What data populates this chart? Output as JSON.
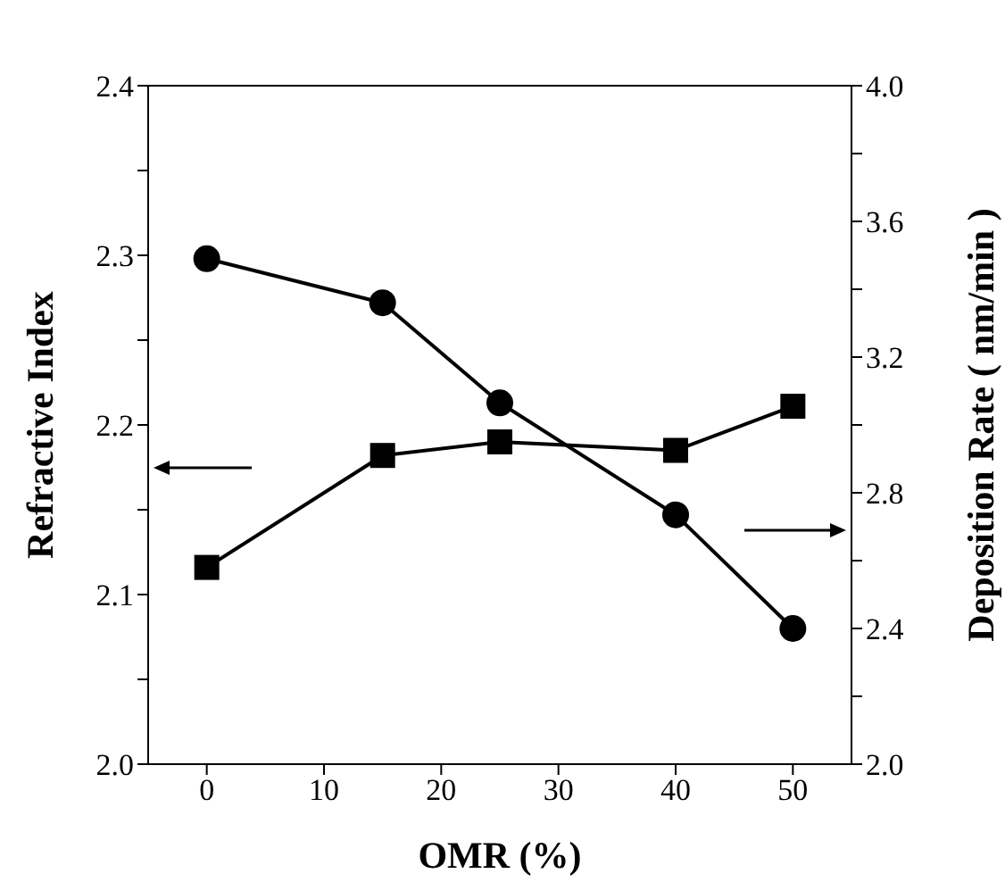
{
  "chart_data": {
    "type": "line",
    "xlabel": "OMR (%)",
    "ylabel": "Refractive Index",
    "y2label": "Deposition Rate ( nm/min )",
    "x": [
      0,
      15,
      25,
      40,
      50
    ],
    "xlim": [
      -5,
      55
    ],
    "xticks": [
      0,
      10,
      20,
      30,
      40,
      50
    ],
    "ylim": [
      2.0,
      2.4
    ],
    "yticks": [
      {
        "value": 2.0,
        "label": "2.0"
      },
      {
        "value": 2.05,
        "label": null
      },
      2.1,
      {
        "value": 2.15,
        "label": null
      },
      2.2,
      {
        "value": 2.25,
        "label": null
      },
      2.3,
      {
        "value": 2.35,
        "label": null
      },
      2.4
    ],
    "y2lim": [
      2.0,
      4.0
    ],
    "y2ticks": [
      {
        "value": 2.0,
        "label": "2.0"
      },
      {
        "value": 2.2,
        "label": null
      },
      2.4,
      {
        "value": 2.6,
        "label": null
      },
      2.8,
      {
        "value": 3.0,
        "label": null
      },
      3.2,
      {
        "value": 3.4,
        "label": null
      },
      3.6,
      {
        "value": 3.8,
        "label": null
      },
      {
        "value": 4.0,
        "label": "4.0"
      }
    ],
    "series": [
      {
        "color": "#000000",
        "marker": "square",
        "values": [
          2.116,
          2.182,
          2.19,
          2.185,
          2.211
        ]
      },
      {
        "color": "#000000",
        "marker": "circle",
        "axis": "y2",
        "values": [
          3.49,
          3.36,
          3.065,
          2.735,
          2.4
        ]
      }
    ]
  }
}
